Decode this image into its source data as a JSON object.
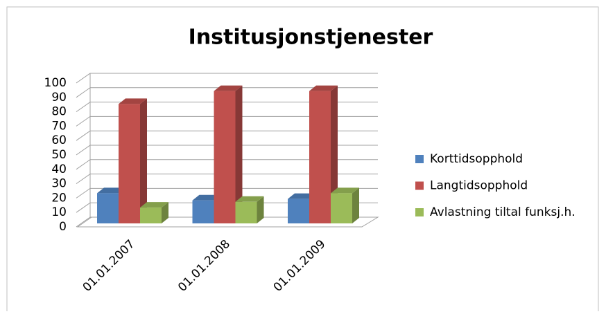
{
  "chart_data": {
    "type": "bar3d",
    "title": "Institusjonstjenester",
    "categories": [
      "01.01.2007",
      "01.01.2008",
      "01.01.2009"
    ],
    "series": [
      {
        "name": "Korttidsopphold",
        "color": "#4f81bd",
        "values": [
          21,
          16,
          17
        ]
      },
      {
        "name": "Langtidsopphold",
        "color": "#c0504d",
        "values": [
          83,
          92,
          92
        ]
      },
      {
        "name": "Avlastning tiltal funksj.h.",
        "color": "#9bbb59",
        "values": [
          11,
          15,
          21
        ]
      }
    ],
    "ylim": [
      0,
      100
    ],
    "yticks": [
      0,
      10,
      20,
      30,
      40,
      50,
      60,
      70,
      80,
      90,
      100
    ],
    "grid": true,
    "legend": "right"
  }
}
